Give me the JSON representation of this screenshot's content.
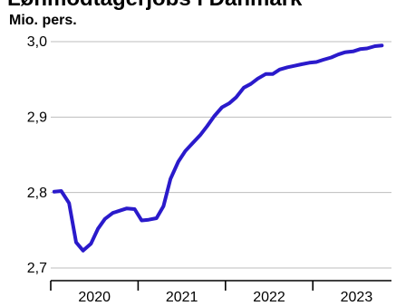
{
  "chart_data": {
    "type": "line",
    "title": "Lønmodtagerjobs i Danmark",
    "unit_label": "Mio. pers.",
    "xlabel": "",
    "ylabel": "Mio. pers.",
    "ylim": [
      2.7,
      3.0
    ],
    "xlim": [
      2019.5,
      2023.4
    ],
    "y_ticks": [
      {
        "value": 2.7,
        "label": "2,7"
      },
      {
        "value": 2.8,
        "label": "2,8"
      },
      {
        "value": 2.9,
        "label": "2,9"
      },
      {
        "value": 3.0,
        "label": "3,0"
      }
    ],
    "x_tick_marks": [
      2019.5,
      2020.5,
      2021.5,
      2022.5
    ],
    "x_tick_labels": [
      {
        "value": 2020.0,
        "label": "2020"
      },
      {
        "value": 2021.0,
        "label": "2021"
      },
      {
        "value": 2022.0,
        "label": "2022"
      },
      {
        "value": 2023.0,
        "label": "2023"
      }
    ],
    "grid": true,
    "colors": {
      "line": "#2a1acb",
      "grid": "#bdbdbd",
      "axis": "#000000"
    },
    "series": [
      {
        "x": [
          2019.54,
          2019.62,
          2019.71,
          2019.79,
          2019.87,
          2019.96,
          2020.04,
          2020.12,
          2020.21,
          2020.29,
          2020.37,
          2020.46,
          2020.54,
          2020.62,
          2020.71,
          2020.79,
          2020.87,
          2020.96,
          2021.04,
          2021.12,
          2021.21,
          2021.29,
          2021.37,
          2021.46,
          2021.54,
          2021.62,
          2021.71,
          2021.79,
          2021.87,
          2021.96,
          2022.04,
          2022.12,
          2022.21,
          2022.29,
          2022.37,
          2022.46,
          2022.54,
          2022.62,
          2022.71,
          2022.79,
          2022.87,
          2022.96,
          2023.04,
          2023.12,
          2023.21,
          2023.29
        ],
        "values": [
          2.801,
          2.802,
          2.786,
          2.734,
          2.723,
          2.732,
          2.752,
          2.765,
          2.773,
          2.776,
          2.779,
          2.778,
          2.763,
          2.764,
          2.766,
          2.782,
          2.818,
          2.841,
          2.855,
          2.865,
          2.876,
          2.888,
          2.901,
          2.913,
          2.918,
          2.926,
          2.939,
          2.944,
          2.951,
          2.957,
          2.957,
          2.963,
          2.966,
          2.968,
          2.97,
          2.972,
          2.973,
          2.976,
          2.979,
          2.983,
          2.986,
          2.987,
          2.99,
          2.991,
          2.994,
          2.995
        ]
      }
    ]
  }
}
